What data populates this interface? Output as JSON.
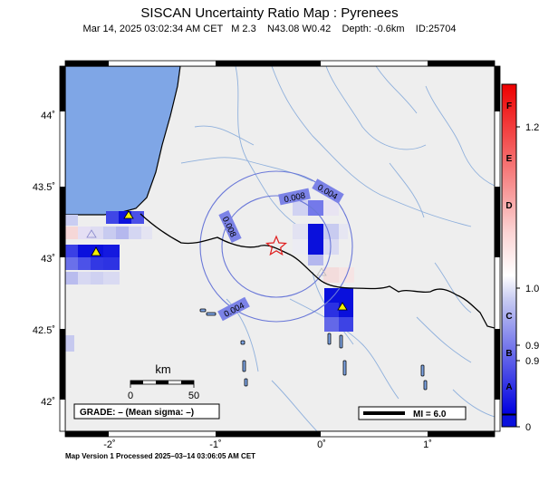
{
  "header": {
    "title": "SISCAN Uncertainty Ratio Map : Pyrenees",
    "subtitle": "Mar 14, 2025 03:02:34 AM CET   M 2.3    N43.08 W0.42    Depth: -0.6km    ID:25704"
  },
  "map": {
    "lat_ticks": [
      "44˚",
      "43.5˚",
      "43˚",
      "42.5˚",
      "42˚"
    ],
    "lon_ticks": [
      "-2˚",
      "-1˚",
      "0˚",
      "1˚"
    ],
    "contour_labels": [
      "0.004",
      "0.008",
      "0.008",
      "0.004"
    ],
    "scale_bar": {
      "unit": "km",
      "labels": [
        "0",
        "50"
      ]
    },
    "grade_box": "GRADE: – (Mean sigma: –)",
    "mi_box": "MI = 6.0",
    "epicenter_marker": "star-icon",
    "station_marker": "triangle-icon",
    "colors": {
      "sea": "#7fa6e6",
      "land": "#eeeeee",
      "rivers": "#8fb0dc",
      "contours": "#6a78d8",
      "epicenter": "#e02020",
      "station": "#f4f000"
    }
  },
  "colorbar": {
    "letters": [
      "F",
      "E",
      "D",
      "C",
      "B",
      "A"
    ],
    "values": [
      "1.2",
      "1.0",
      "0.9",
      "0.9",
      "0"
    ]
  },
  "footer": {
    "text": "Map Version 1 Processed 2025–03–14 03:06:05 AM CET"
  }
}
